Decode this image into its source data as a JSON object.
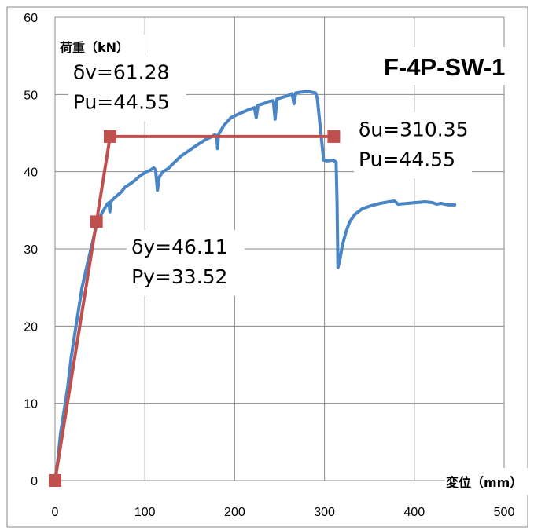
{
  "chart_data": {
    "type": "line",
    "title": "F-4P-SW-1",
    "xlabel": "変位（mm）",
    "ylabel": "荷重（kN）",
    "xlim": [
      0,
      500
    ],
    "ylim": [
      0,
      60
    ],
    "xticks": [
      0,
      100,
      200,
      300,
      400,
      500
    ],
    "yticks": [
      0,
      10,
      20,
      30,
      40,
      50,
      60
    ],
    "grid": true,
    "legend": "none",
    "series": [
      {
        "color": "#4a86c5",
        "kind": "line",
        "points": [
          [
            0,
            0
          ],
          [
            3,
            2.5
          ],
          [
            6,
            6
          ],
          [
            10,
            9
          ],
          [
            14,
            12
          ],
          [
            18,
            16
          ],
          [
            22,
            19
          ],
          [
            26,
            22
          ],
          [
            30,
            25
          ],
          [
            34,
            27
          ],
          [
            38,
            29
          ],
          [
            42,
            31
          ],
          [
            46,
            33
          ],
          [
            50,
            34.2
          ],
          [
            54,
            35
          ],
          [
            58,
            35.8
          ],
          [
            60,
            36
          ],
          [
            61,
            34.8
          ],
          [
            62,
            36.1
          ],
          [
            66,
            36.6
          ],
          [
            70,
            37
          ],
          [
            74,
            37.4
          ],
          [
            78,
            38
          ],
          [
            82,
            38.3
          ],
          [
            88,
            38.8
          ],
          [
            94,
            39.4
          ],
          [
            100,
            39.9
          ],
          [
            106,
            40.2
          ],
          [
            110,
            40.5
          ],
          [
            112,
            40.2
          ],
          [
            114,
            37.6
          ],
          [
            116,
            39.3
          ],
          [
            120,
            40
          ],
          [
            126,
            40.4
          ],
          [
            132,
            41.1
          ],
          [
            140,
            42
          ],
          [
            150,
            42.8
          ],
          [
            160,
            43.6
          ],
          [
            168,
            44.2
          ],
          [
            174,
            44.5
          ],
          [
            178,
            44.8
          ],
          [
            180,
            44.6
          ],
          [
            181,
            43
          ],
          [
            182,
            44.8
          ],
          [
            188,
            46
          ],
          [
            196,
            47
          ],
          [
            205,
            47.5
          ],
          [
            215,
            48
          ],
          [
            222,
            48.3
          ],
          [
            224,
            47
          ],
          [
            226,
            48.6
          ],
          [
            232,
            48.8
          ],
          [
            238,
            49.1
          ],
          [
            243,
            49.2
          ],
          [
            245,
            46.8
          ],
          [
            247,
            49.4
          ],
          [
            252,
            49.6
          ],
          [
            258,
            49.8
          ],
          [
            264,
            50.1
          ],
          [
            266,
            48.8
          ],
          [
            268,
            50.2
          ],
          [
            274,
            50.3
          ],
          [
            280,
            50.4
          ],
          [
            286,
            50.3
          ],
          [
            290,
            50.2
          ],
          [
            292,
            49.5
          ],
          [
            296,
            45
          ],
          [
            299,
            41.5
          ],
          [
            303,
            41.4
          ],
          [
            310,
            41.5
          ],
          [
            313,
            41.2
          ],
          [
            314,
            36
          ],
          [
            315,
            27.6
          ],
          [
            317,
            28.5
          ],
          [
            320,
            30.5
          ],
          [
            324,
            32.2
          ],
          [
            328,
            33.5
          ],
          [
            334,
            34.5
          ],
          [
            342,
            35.2
          ],
          [
            352,
            35.6
          ],
          [
            362,
            35.9
          ],
          [
            372,
            36.1
          ],
          [
            378,
            36.2
          ],
          [
            382,
            35.8
          ],
          [
            392,
            35.9
          ],
          [
            402,
            36
          ],
          [
            412,
            36.1
          ],
          [
            420,
            36
          ],
          [
            425,
            35.8
          ],
          [
            430,
            35.9
          ],
          [
            438,
            35.7
          ],
          [
            445,
            35.7
          ]
        ]
      },
      {
        "color": "#c0504d",
        "kind": "bilinear",
        "marker": "square",
        "points": [
          [
            0,
            0
          ],
          [
            46.11,
            33.52
          ],
          [
            61.28,
            44.55
          ],
          [
            310.35,
            44.55
          ]
        ]
      }
    ],
    "annotations": [
      {
        "lines": [
          "δv=61.28",
          "Pu=44.55"
        ],
        "at": [
          20,
          52
        ]
      },
      {
        "lines": [
          "δu=310.35",
          "Pu=44.55"
        ],
        "at": [
          338,
          44.6
        ]
      },
      {
        "lines": [
          "δy=46.11",
          "Py=33.52"
        ],
        "at": [
          85,
          29.4
        ]
      }
    ]
  }
}
